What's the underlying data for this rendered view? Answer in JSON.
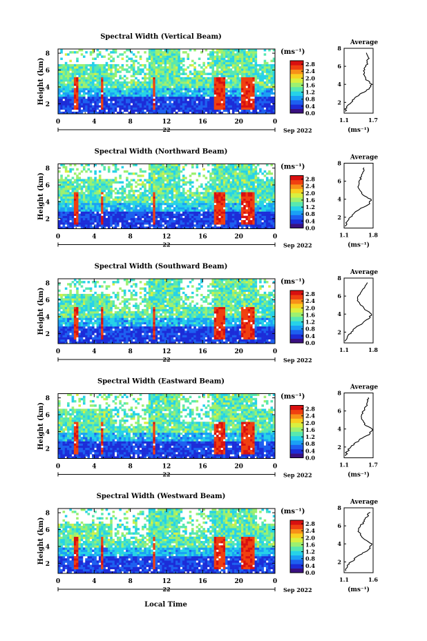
{
  "x_axis_title": "Local Time",
  "colorbar_unit": "(ms⁻¹)",
  "colorbar_ticks": [
    "2.8",
    "2.4",
    "2.0",
    "1.6",
    "1.2",
    "0.8",
    "0.4",
    "0.0"
  ],
  "colorbar_range": [
    0.0,
    3.0
  ],
  "colorbar_colors": [
    "#3a1080",
    "#1c2cd8",
    "#1d60f0",
    "#1aa0f5",
    "#26d2e8",
    "#58e8b0",
    "#9cf070",
    "#d8f040",
    "#f8d020",
    "#f89018",
    "#f04010",
    "#d81010"
  ],
  "panels": [
    {
      "title": "Spectral Width (Vertical Beam)",
      "y_label": "Height (km)",
      "y_ticks": [
        "8",
        "6",
        "4",
        "2"
      ],
      "x_ticks": [
        "0",
        "4",
        "8",
        "12",
        "16",
        "20",
        "0"
      ],
      "date_day": "22",
      "date_label": "Sep 2022",
      "avg_title": "Average",
      "avg_x_ticks": [
        "1.1",
        "1.7"
      ],
      "avg_x_unit": "(ms⁻¹)"
    },
    {
      "title": "Spectral Width (Northward Beam)",
      "y_label": "Height (km)",
      "y_ticks": [
        "8",
        "6",
        "4",
        "2"
      ],
      "x_ticks": [
        "0",
        "4",
        "8",
        "12",
        "16",
        "20",
        "0"
      ],
      "date_day": "22",
      "date_label": "Sep 2022",
      "avg_title": "Average",
      "avg_x_ticks": [
        "1.1",
        "1.8"
      ],
      "avg_x_unit": "(ms⁻¹)"
    },
    {
      "title": "Spectral Width (Southward Beam)",
      "y_label": "Height (km)",
      "y_ticks": [
        "8",
        "6",
        "4",
        "2"
      ],
      "x_ticks": [
        "0",
        "4",
        "8",
        "12",
        "16",
        "20",
        "0"
      ],
      "date_day": "22",
      "date_label": "Sep 2022",
      "avg_title": "Average",
      "avg_x_ticks": [
        "1.1",
        "1.8"
      ],
      "avg_x_unit": ""
    },
    {
      "title": "Spectral Width (Eastward Beam)",
      "y_label": "Height (km)",
      "y_ticks": [
        "8",
        "6",
        "4",
        "2"
      ],
      "x_ticks": [
        "0",
        "4",
        "8",
        "12",
        "16",
        "20",
        "0"
      ],
      "date_day": "22",
      "date_label": "Sep 2022",
      "avg_title": "Average",
      "avg_x_ticks": [
        "1.1",
        "1.7"
      ],
      "avg_x_unit": "(ms⁻¹)"
    },
    {
      "title": "Spectral Width (Westward Beam)",
      "y_label": "Height (km)",
      "y_ticks": [
        "8",
        "6",
        "4",
        "2"
      ],
      "x_ticks": [
        "0",
        "4",
        "8",
        "12",
        "16",
        "20",
        "0"
      ],
      "date_day": "22",
      "date_label": "Sep 2022",
      "avg_title": "Average",
      "avg_x_ticks": [
        "1.1",
        "1.6"
      ],
      "avg_x_unit": "(ms⁻¹)"
    }
  ],
  "chart_data": [
    {
      "type": "heatmap",
      "title": "Spectral Width (Vertical Beam)",
      "xlabel": "Local Time",
      "ylabel": "Height (km)",
      "x_range_hours": [
        0,
        24
      ],
      "ylim_km": [
        0.8,
        8.5
      ],
      "color_range_ms": [
        0.0,
        3.0
      ],
      "average_profile": {
        "title": "Average",
        "xlim": [
          1.1,
          1.7
        ],
        "height_km": [
          1.0,
          1.5,
          2.0,
          2.5,
          3.0,
          3.5,
          4.0,
          4.5,
          5.0,
          5.5,
          6.0,
          6.5,
          7.0,
          7.5
        ],
        "width_ms": [
          1.12,
          1.15,
          1.25,
          1.32,
          1.45,
          1.62,
          1.68,
          1.55,
          1.52,
          1.5,
          1.55,
          1.58,
          1.6,
          1.56
        ]
      }
    },
    {
      "type": "heatmap",
      "title": "Spectral Width (Northward Beam)",
      "xlabel": "Local Time",
      "ylabel": "Height (km)",
      "x_range_hours": [
        0,
        24
      ],
      "ylim_km": [
        0.8,
        8.5
      ],
      "color_range_ms": [
        0.0,
        3.0
      ],
      "average_profile": {
        "title": "Average",
        "xlim": [
          1.1,
          1.8
        ],
        "height_km": [
          1.0,
          1.5,
          2.0,
          2.5,
          3.0,
          3.5,
          4.0,
          4.5,
          5.0,
          5.5,
          6.0,
          6.5,
          7.0,
          7.5
        ],
        "width_ms": [
          1.12,
          1.17,
          1.25,
          1.35,
          1.5,
          1.72,
          1.75,
          1.55,
          1.48,
          1.45,
          1.46,
          1.52,
          1.55,
          1.58
        ]
      }
    },
    {
      "type": "heatmap",
      "title": "Spectral Width (Southward Beam)",
      "xlabel": "Local Time",
      "ylabel": "Height (km)",
      "x_range_hours": [
        0,
        24
      ],
      "ylim_km": [
        0.8,
        8.5
      ],
      "color_range_ms": [
        0.0,
        3.0
      ],
      "average_profile": {
        "title": "Average",
        "xlim": [
          1.1,
          1.8
        ],
        "height_km": [
          1.0,
          1.5,
          2.0,
          2.5,
          3.0,
          3.5,
          4.0,
          4.5,
          5.0,
          5.5,
          6.0,
          6.5,
          7.0,
          7.5
        ],
        "width_ms": [
          1.12,
          1.18,
          1.27,
          1.38,
          1.55,
          1.7,
          1.76,
          1.6,
          1.5,
          1.42,
          1.44,
          1.52,
          1.6,
          1.66
        ]
      }
    },
    {
      "type": "heatmap",
      "title": "Spectral Width (Eastward Beam)",
      "xlabel": "Local Time",
      "ylabel": "Height (km)",
      "x_range_hours": [
        0,
        24
      ],
      "ylim_km": [
        0.8,
        8.5
      ],
      "color_range_ms": [
        0.0,
        3.0
      ],
      "average_profile": {
        "title": "Average",
        "xlim": [
          1.1,
          1.7
        ],
        "height_km": [
          1.0,
          1.5,
          2.0,
          2.5,
          3.0,
          3.5,
          4.0,
          4.5,
          5.0,
          5.5,
          6.0,
          6.5,
          7.0,
          7.5
        ],
        "width_ms": [
          1.13,
          1.16,
          1.24,
          1.34,
          1.48,
          1.64,
          1.68,
          1.52,
          1.48,
          1.46,
          1.5,
          1.55,
          1.58,
          1.6
        ]
      }
    },
    {
      "type": "heatmap",
      "title": "Spectral Width (Westward Beam)",
      "xlabel": "Local Time",
      "ylabel": "Height (km)",
      "x_range_hours": [
        0,
        24
      ],
      "ylim_km": [
        0.8,
        8.5
      ],
      "color_range_ms": [
        0.0,
        3.0
      ],
      "average_profile": {
        "title": "Average",
        "xlim": [
          1.1,
          1.6
        ],
        "height_km": [
          1.0,
          1.5,
          2.0,
          2.5,
          3.0,
          3.5,
          4.0,
          4.5,
          5.0,
          5.5,
          6.0,
          6.5,
          7.0,
          7.5
        ],
        "width_ms": [
          1.13,
          1.16,
          1.22,
          1.3,
          1.42,
          1.55,
          1.58,
          1.45,
          1.38,
          1.35,
          1.38,
          1.45,
          1.5,
          1.55
        ]
      }
    }
  ]
}
